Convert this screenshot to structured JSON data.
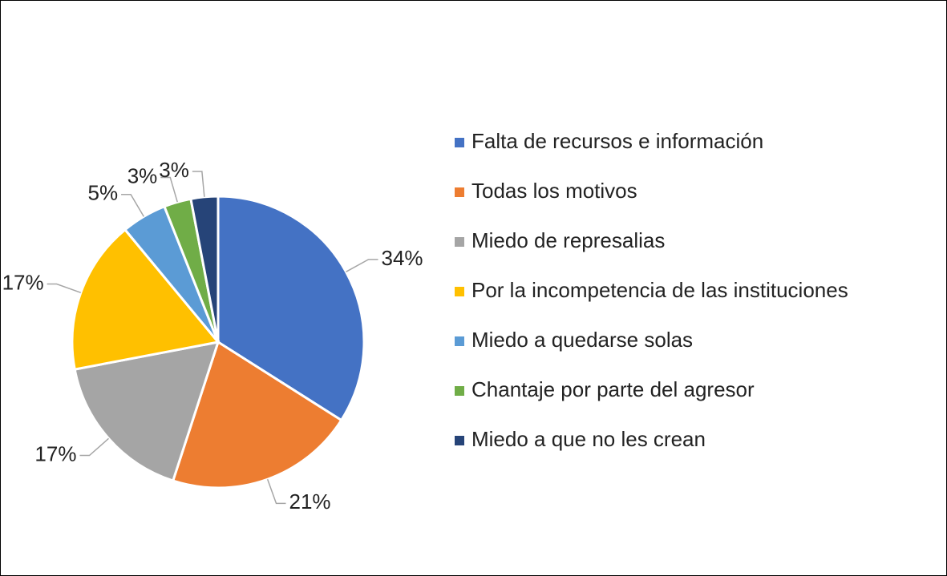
{
  "chart_data": {
    "type": "pie",
    "categories": [
      "Falta de recursos e información",
      "Todas los motivos",
      "Miedo de represalias",
      "Por la incompetencia de las instituciones",
      "Miedo a quedarse solas",
      "Chantaje por parte del agresor",
      "Miedo a que no les crean"
    ],
    "values": [
      34,
      21,
      17,
      17,
      5,
      3,
      3
    ],
    "value_labels": [
      "34%",
      "21%",
      "17%",
      "17%",
      "5%",
      "3%",
      "3%"
    ],
    "colors": [
      "#4472c4",
      "#ed7d31",
      "#a5a5a5",
      "#ffc000",
      "#5b9bd5",
      "#70ad47",
      "#264478"
    ],
    "legend": "right"
  }
}
